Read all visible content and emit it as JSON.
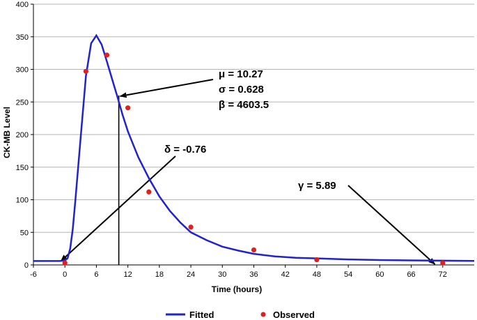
{
  "chart_data": {
    "type": "line",
    "xlabel": "Time (hours)",
    "ylabel": "CK-MB Level",
    "xlim": [
      -6,
      78
    ],
    "ylim": [
      0,
      400
    ],
    "xticks": [
      -6,
      0,
      6,
      12,
      18,
      24,
      30,
      36,
      42,
      48,
      54,
      60,
      66,
      72
    ],
    "yticks": [
      0,
      50,
      100,
      150,
      200,
      250,
      300,
      350,
      400
    ],
    "grid": "horizontal",
    "legend_position": "bottom",
    "series": [
      {
        "name": "Fitted",
        "type": "line",
        "color": "#2222cc",
        "x": [
          -6,
          -2,
          -1,
          0,
          0.5,
          1,
          1.5,
          2,
          3,
          4,
          5,
          6,
          7,
          8,
          9,
          10,
          11,
          12,
          14,
          16,
          18,
          20,
          22,
          24,
          27,
          30,
          33,
          36,
          40,
          44,
          48,
          54,
          60,
          66,
          72,
          78
        ],
        "y": [
          6,
          6,
          6,
          7,
          10,
          25,
          55,
          100,
          195,
          290,
          340,
          352,
          338,
          312,
          285,
          258,
          230,
          205,
          165,
          133,
          105,
          83,
          65,
          50,
          38,
          28,
          22,
          17,
          13,
          11,
          10,
          8.5,
          7.5,
          7,
          6.5,
          6.2
        ]
      },
      {
        "name": "Observed",
        "type": "scatter",
        "color": "#e02020",
        "x": [
          0,
          4,
          8,
          12,
          16,
          24,
          36,
          48,
          72
        ],
        "y": [
          3,
          297,
          322,
          241,
          112,
          58,
          23,
          8,
          3
        ]
      }
    ],
    "annotations": [
      {
        "lines": [
          "μ = 10.27",
          "σ = 0.628",
          "β = 4603.5"
        ],
        "x": 10.27
      },
      {
        "lines": [
          "δ = -0.76"
        ],
        "x": -0.76
      },
      {
        "lines": [
          "γ = 5.89"
        ],
        "x": 70.5
      }
    ]
  }
}
